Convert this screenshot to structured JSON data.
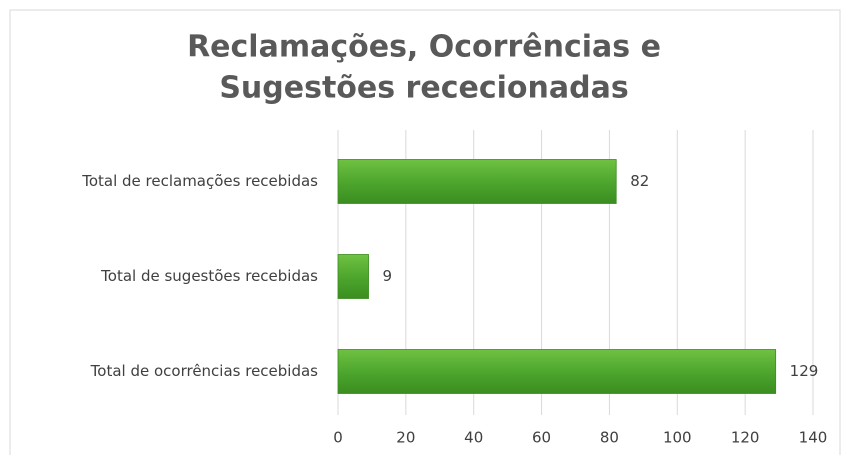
{
  "chart_data": {
    "type": "bar",
    "orientation": "horizontal",
    "title": [
      "Reclamações, Ocorrências e",
      "Sugestões rececionadas"
    ],
    "categories": [
      "Total de reclamações recebidas",
      "Total de sugestões recebidas",
      "Total de ocorrências recebidas"
    ],
    "values": [
      82,
      9,
      129
    ],
    "color": "#4ea72e",
    "xlim": [
      0,
      140
    ],
    "xticks": [
      0,
      20,
      40,
      60,
      80,
      100,
      120,
      140
    ],
    "grid": true
  }
}
